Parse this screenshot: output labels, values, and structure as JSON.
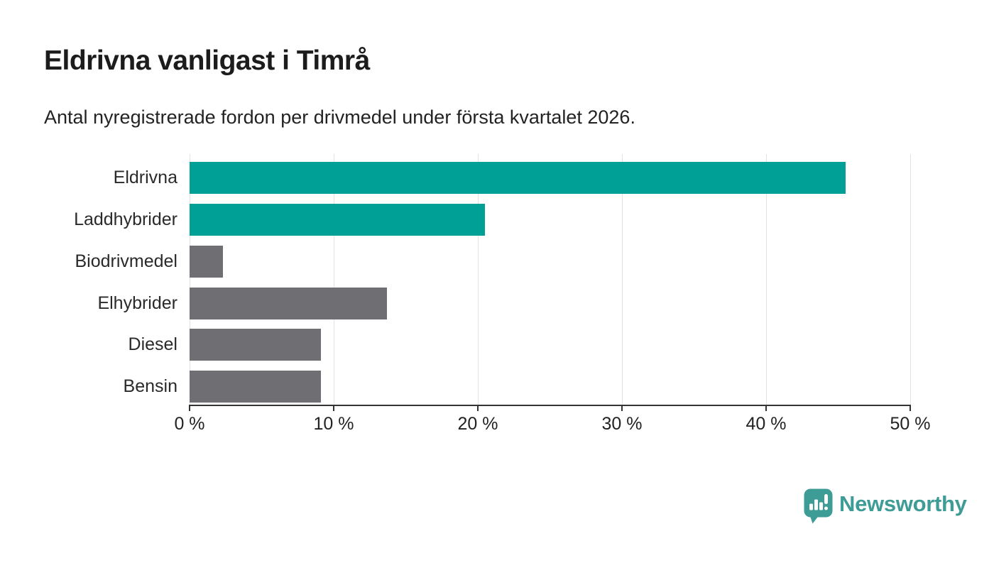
{
  "header": {
    "title": "Eldrivna vanligast i Timrå",
    "subtitle": "Antal nyregistrerade fordon per drivmedel under första kvartalet 2026."
  },
  "chart_data": {
    "type": "bar",
    "orientation": "horizontal",
    "title": "Eldrivna vanligast i Timrå",
    "subtitle": "Antal nyregistrerade fordon per drivmedel under första kvartalet 2026.",
    "categories": [
      "Eldrivna",
      "Laddhybrider",
      "Biodrivmedel",
      "Elhybrider",
      "Diesel",
      "Bensin"
    ],
    "values": [
      45.5,
      20.5,
      2.3,
      13.7,
      9.1,
      9.1
    ],
    "unit": "%",
    "xlim": [
      0,
      50
    ],
    "x_ticks": [
      0,
      10,
      20,
      30,
      40,
      50
    ],
    "x_tick_labels": [
      "0 %",
      "10 %",
      "20 %",
      "30 %",
      "40 %",
      "50 %"
    ],
    "bar_colors": [
      "#00A096",
      "#00A096",
      "#6E6E73",
      "#6E6E73",
      "#6E6E73",
      "#6E6E73"
    ],
    "highlight_color": "#00A096",
    "default_color": "#6E6E73",
    "grid": true,
    "legend_position": "none"
  },
  "footer": {
    "brand": "Newsworthy",
    "brand_color": "#3E9C96",
    "logo_icon": "bar-chart-speech-bubble-icon"
  }
}
